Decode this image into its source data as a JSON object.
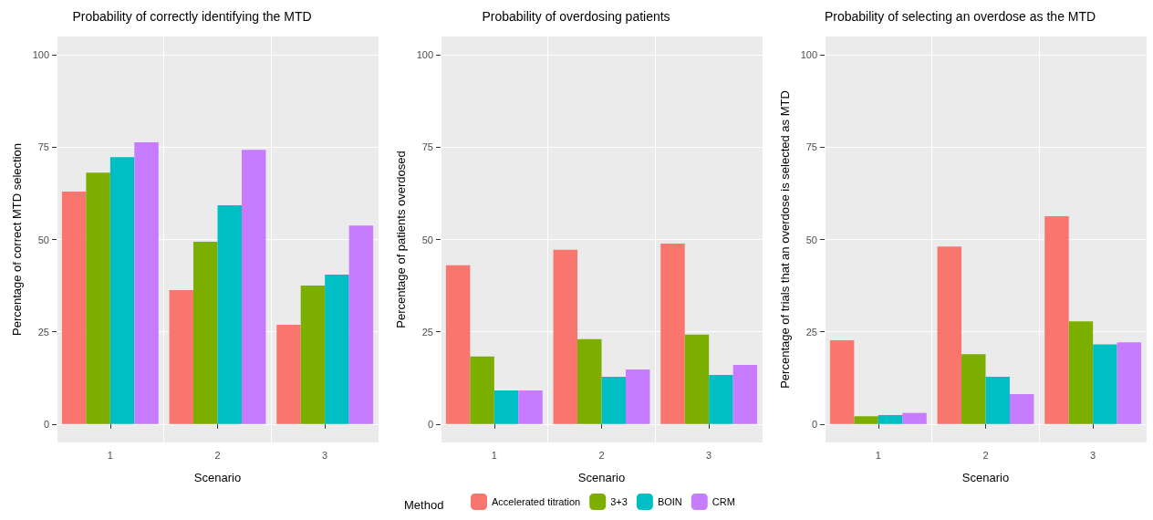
{
  "chart_data": [
    {
      "type": "bar",
      "title": "Probability of correctly identifying the MTD",
      "xlabel": "Scenario",
      "ylabel": "Percentage of correct MTD selection",
      "categories": [
        "1",
        "2",
        "3"
      ],
      "ylim": [
        -5,
        105
      ],
      "yticks": [
        0,
        25,
        50,
        75,
        100
      ],
      "grid": true,
      "series": [
        {
          "color": "#f8766d",
          "values": [
            63.0,
            36.3,
            26.9
          ]
        },
        {
          "color": "#7cae00",
          "values": [
            68.1,
            49.4,
            37.5
          ]
        },
        {
          "color": "#00bfc4",
          "values": [
            72.3,
            59.3,
            40.5
          ]
        },
        {
          "color": "#c77cff",
          "values": [
            76.3,
            74.3,
            53.8
          ]
        }
      ]
    },
    {
      "type": "bar",
      "title": "Probability of overdosing patients",
      "xlabel": "Scenario",
      "ylabel": "Percentage of patients overdosed",
      "categories": [
        "1",
        "2",
        "3"
      ],
      "ylim": [
        -5,
        105
      ],
      "yticks": [
        0,
        25,
        50,
        75,
        100
      ],
      "grid": true,
      "legend": "bottom",
      "legend_title": "Method",
      "series": [
        {
          "name": "Accelerated titration",
          "color": "#f8766d",
          "values": [
            43.0,
            47.2,
            48.9
          ]
        },
        {
          "name": "3+3",
          "color": "#7cae00",
          "values": [
            18.3,
            23.0,
            24.2
          ]
        },
        {
          "name": "BOIN",
          "color": "#00bfc4",
          "values": [
            9.1,
            12.8,
            13.3
          ]
        },
        {
          "name": "CRM",
          "color": "#c77cff",
          "values": [
            9.1,
            14.8,
            16.0
          ]
        }
      ]
    },
    {
      "type": "bar",
      "title": "Probability of selecting an overdose as the MTD",
      "xlabel": "Scenario",
      "ylabel": "Percentage of trials that an overdose is selected as MTD",
      "categories": [
        "1",
        "2",
        "3"
      ],
      "ylim": [
        -5,
        105
      ],
      "yticks": [
        0,
        25,
        50,
        75,
        100
      ],
      "grid": true,
      "series": [
        {
          "color": "#f8766d",
          "values": [
            22.7,
            48.1,
            56.3
          ]
        },
        {
          "color": "#7cae00",
          "values": [
            2.1,
            18.9,
            27.8
          ]
        },
        {
          "color": "#00bfc4",
          "values": [
            2.4,
            12.8,
            21.6
          ]
        },
        {
          "color": "#c77cff",
          "values": [
            3.0,
            8.1,
            22.1
          ]
        }
      ]
    }
  ]
}
